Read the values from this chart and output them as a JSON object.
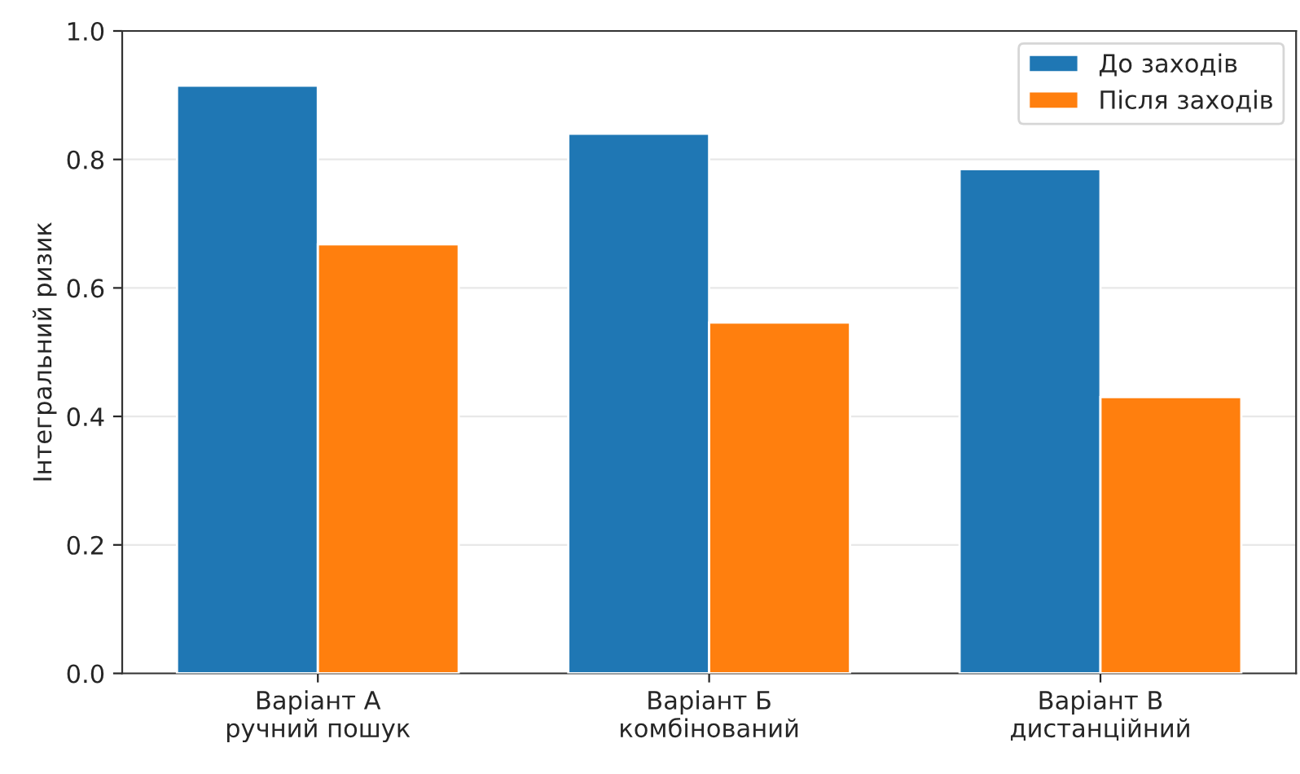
{
  "chart_data": {
    "type": "bar",
    "ylabel": "Інтегральний ризик",
    "categories": [
      "Варіант А\nручний пошук",
      "Варіант Б\nкомбінований",
      "Варіант В\nдистанційний"
    ],
    "series": [
      {
        "name": "До заходів",
        "color": "#1f77b4",
        "values": [
          0.915,
          0.84,
          0.785
        ]
      },
      {
        "name": "Після заходів",
        "color": "#ff7f0e",
        "values": [
          0.668,
          0.546,
          0.43
        ]
      }
    ],
    "ylim": [
      0,
      1.0
    ],
    "yticks": [
      {
        "value": 0,
        "label": "0.0"
      },
      0.2,
      0.4,
      0.6,
      0.8,
      {
        "value": 1,
        "label": "1.0"
      }
    ],
    "grid": "y",
    "legend": "top right"
  }
}
